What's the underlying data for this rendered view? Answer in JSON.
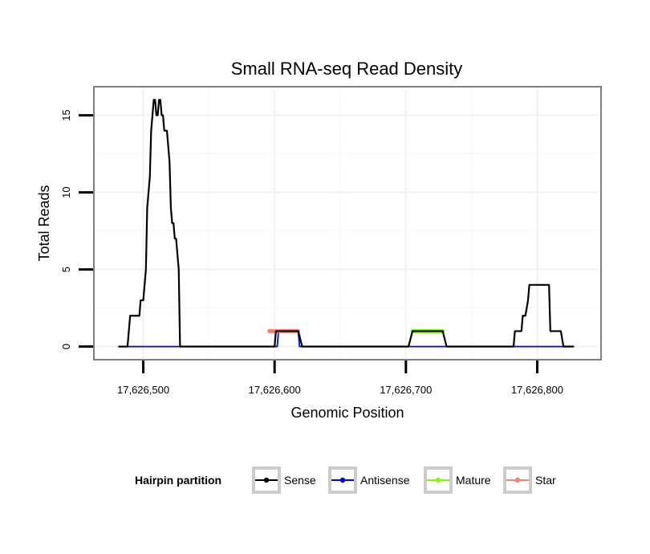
{
  "chart_data": {
    "type": "line",
    "title": "Small RNA-seq Read Density",
    "xlabel": "Genomic Position",
    "ylabel": "Total Reads",
    "xlim": [
      17626463,
      17626848
    ],
    "ylim": [
      -0.8,
      16.8
    ],
    "grid": true,
    "x_ticks": [
      17626500,
      17626600,
      17626700,
      17626800
    ],
    "x_tick_labels": [
      "17,626,500",
      "17,626,600",
      "17,626,700",
      "17,626,800"
    ],
    "y_ticks": [
      0,
      5,
      10,
      15
    ],
    "y_tick_labels": [
      "0",
      "5",
      "10",
      "15"
    ],
    "legend": {
      "title": "Hairpin partition",
      "position": "bottom",
      "entries": [
        {
          "name": "Sense",
          "color": "#000000"
        },
        {
          "name": "Antisense",
          "color": "#0000ff"
        },
        {
          "name": "Mature",
          "color": "#7fff00"
        },
        {
          "name": "Star",
          "color": "#fa8072"
        }
      ]
    },
    "series": [
      {
        "name": "Sense",
        "color": "#000000",
        "x": [
          17626481,
          17626488,
          17626490,
          17626497,
          17626498,
          17626500,
          17626502,
          17626503,
          17626505,
          17626506,
          17626507,
          17626508,
          17626509,
          17626510,
          17626511,
          17626512,
          17626513,
          17626514,
          17626515,
          17626516,
          17626518,
          17626520,
          17626521,
          17626522,
          17626523,
          17626524,
          17626525,
          17626527,
          17626528,
          17626529,
          17626600,
          17626601,
          17626618,
          17626621,
          17626702,
          17626705,
          17626728,
          17626731,
          17626782,
          17626783,
          17626788,
          17626789,
          17626791,
          17626793,
          17626794,
          17626809,
          17626810,
          17626818,
          17626820,
          17626828
        ],
        "y": [
          0,
          0,
          2,
          2,
          3,
          3,
          5,
          9,
          11,
          14,
          15,
          16,
          16,
          15,
          15,
          16,
          16,
          15,
          15,
          14,
          14,
          12,
          9,
          8,
          8,
          7,
          7,
          5,
          0,
          0,
          0,
          1,
          1,
          0,
          0,
          1,
          1,
          0,
          0,
          1,
          1,
          2,
          2,
          3,
          4,
          4,
          1,
          1,
          0,
          0
        ]
      },
      {
        "name": "Antisense",
        "color": "#0000ff",
        "x": [
          17626481,
          17626602,
          17626603,
          17626618,
          17626619,
          17626828
        ],
        "y": [
          0,
          0,
          1,
          1,
          0,
          0
        ]
      },
      {
        "name": "Mature",
        "color": "#7fff00",
        "x": [
          17626705,
          17626728
        ],
        "y": [
          1,
          1
        ]
      },
      {
        "name": "Star",
        "color": "#fa8072",
        "x": [
          17626596,
          17626618
        ],
        "y": [
          1,
          1
        ]
      }
    ]
  }
}
